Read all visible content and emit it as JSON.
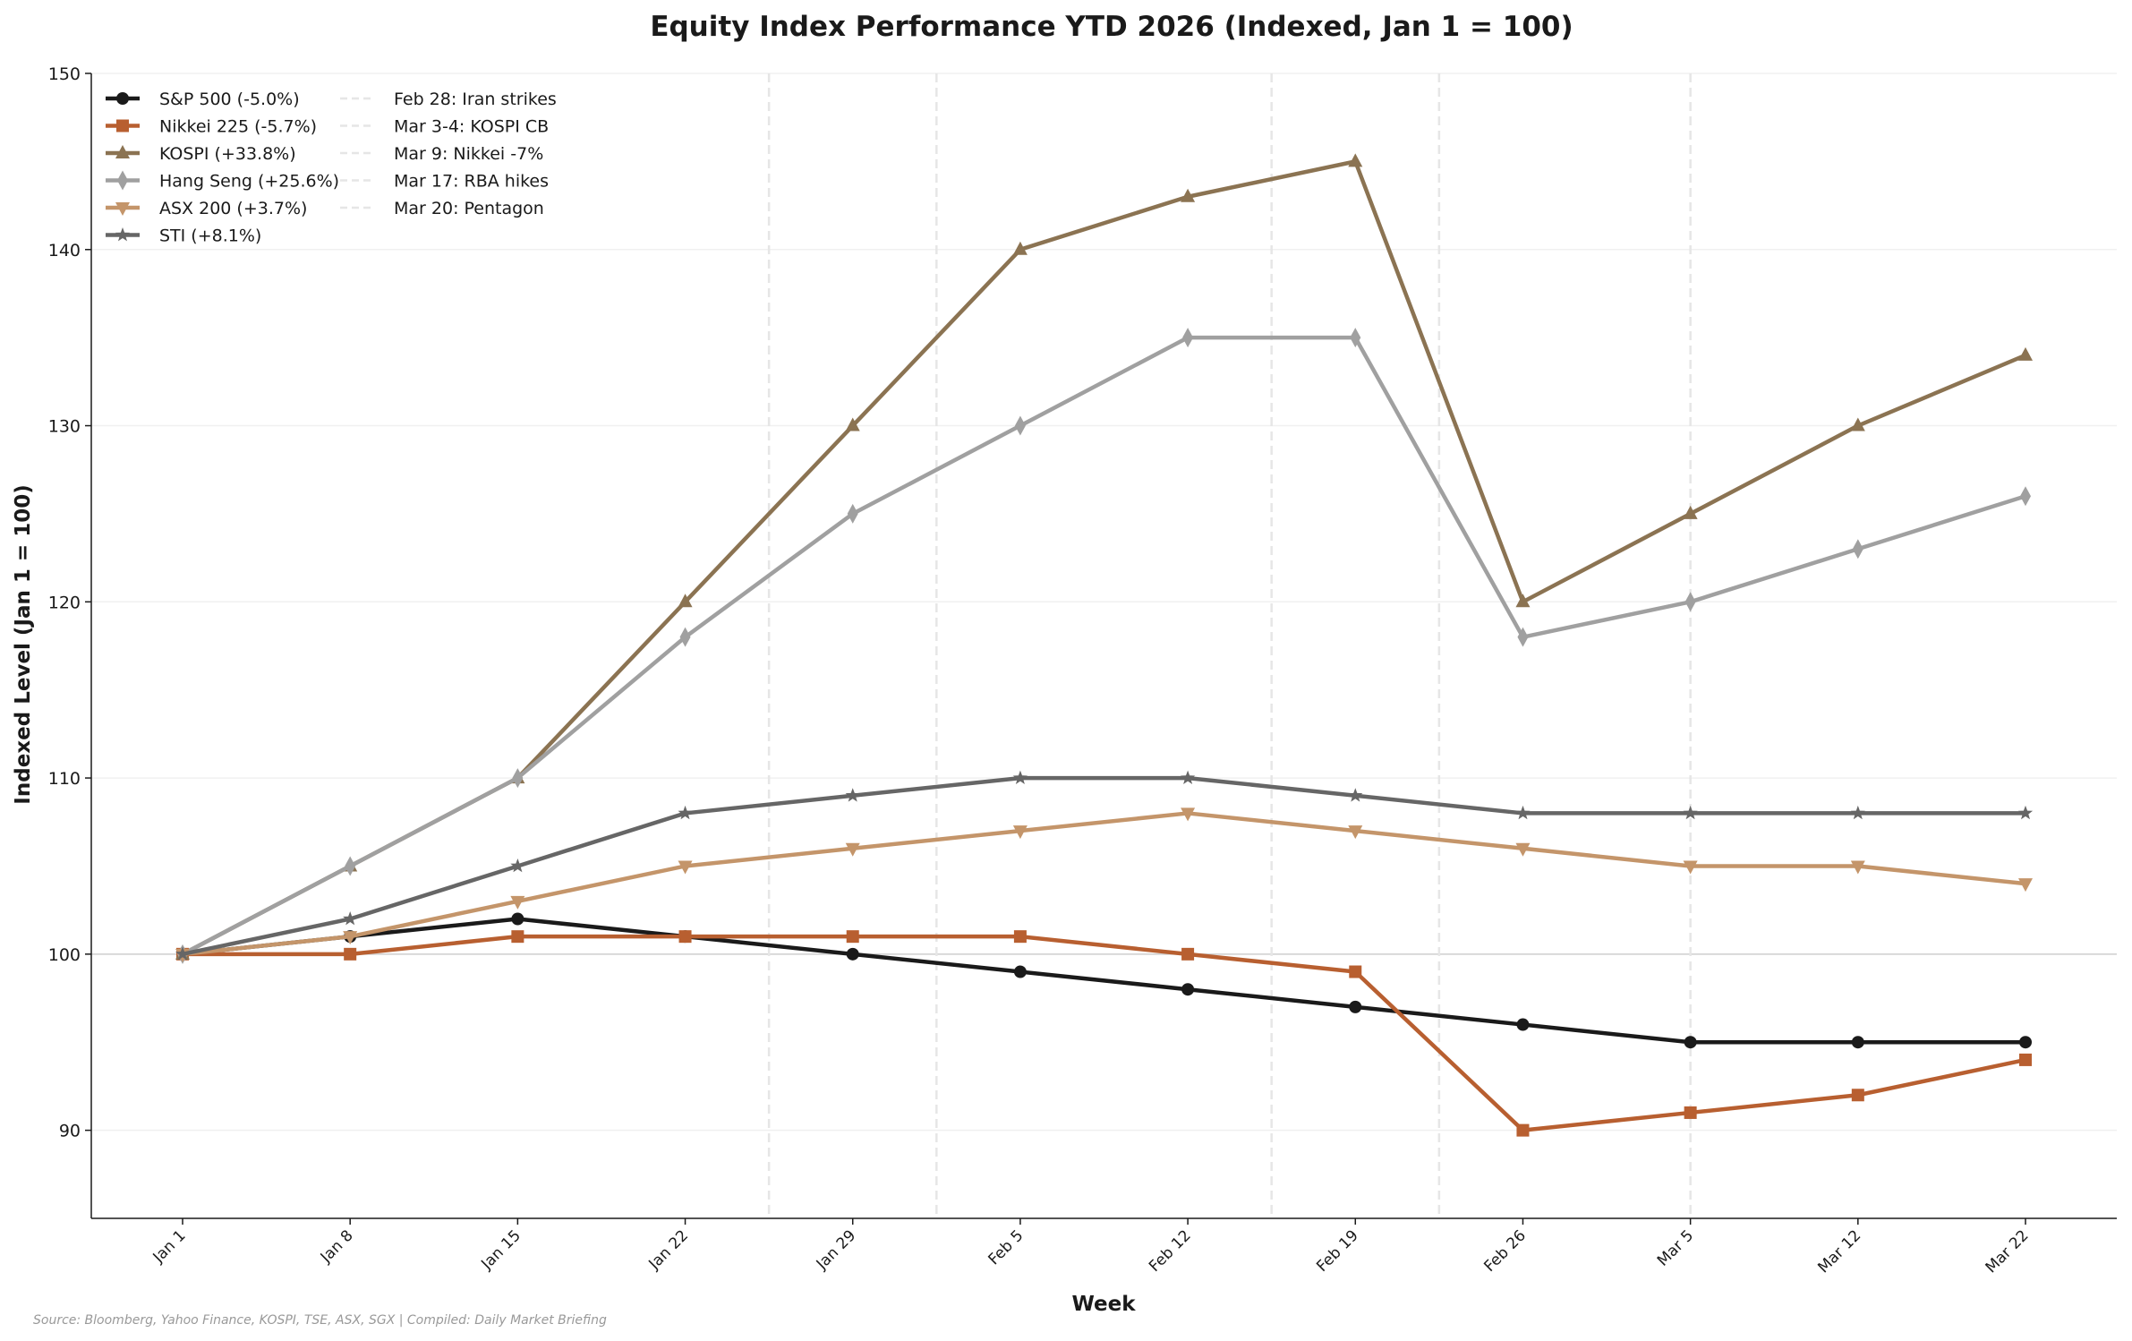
{
  "chart_data": {
    "type": "line",
    "title": "Equity Index Performance YTD 2026 (Indexed, Jan 1 = 100)",
    "xlabel": "Week",
    "ylabel": "Indexed Level (Jan 1 = 100)",
    "categories": [
      "Jan 1",
      "Jan 8",
      "Jan 15",
      "Jan 22",
      "Jan 29",
      "Feb 5",
      "Feb 12",
      "Feb 19",
      "Feb 26",
      "Mar 5",
      "Mar 12",
      "Mar 22"
    ],
    "ylim": [
      85,
      150
    ],
    "yticks": [
      90,
      100,
      110,
      120,
      130,
      140,
      150
    ],
    "grid": "horizontal, faint",
    "reference_line": 100,
    "legend_placement": "top-left",
    "series": [
      {
        "name": "S&P 500 (-5.0%)",
        "color": "#1a1a1a",
        "marker": "circle",
        "values": [
          100,
          101,
          102,
          101,
          100,
          99,
          98,
          97,
          96,
          95,
          95,
          95
        ]
      },
      {
        "name": "Nikkei 225 (-5.7%)",
        "color": "#b85f30",
        "marker": "square",
        "values": [
          100,
          100,
          101,
          101,
          101,
          101,
          100,
          99,
          90,
          91,
          92,
          94
        ]
      },
      {
        "name": "KOSPI (+33.8%)",
        "color": "#8b7352",
        "marker": "triangle-up",
        "values": [
          100,
          105,
          110,
          120,
          130,
          140,
          143,
          145,
          120,
          125,
          130,
          134
        ]
      },
      {
        "name": "Hang Seng (+25.6%)",
        "color": "#a0a0a0",
        "marker": "diamond",
        "values": [
          100,
          105,
          110,
          118,
          125,
          130,
          135,
          135,
          118,
          120,
          123,
          126
        ]
      },
      {
        "name": "ASX 200 (+3.7%)",
        "color": "#c4956a",
        "marker": "triangle-down",
        "values": [
          100,
          101,
          103,
          105,
          106,
          107,
          108,
          107,
          106,
          105,
          105,
          104
        ]
      },
      {
        "name": "STI (+8.1%)",
        "color": "#666666",
        "marker": "star",
        "values": [
          100,
          102,
          105,
          108,
          109,
          110,
          110,
          109,
          108,
          108,
          108,
          108
        ]
      }
    ],
    "events": [
      {
        "label": "Feb 28: Iran strikes",
        "x_index": 3.5
      },
      {
        "label": "Mar 3-4: KOSPI CB",
        "x_index": 4.5
      },
      {
        "label": "Mar 9: Nikkei -7%",
        "x_index": 6.5
      },
      {
        "label": "Mar 17: RBA hikes",
        "x_index": 7.5
      },
      {
        "label": "Mar 20: Pentagon",
        "x_index": 9.0
      }
    ],
    "source": "Source: Bloomberg, Yahoo Finance, KOSPI, TSE, ASX, SGX | Compiled: Daily Market Briefing"
  }
}
